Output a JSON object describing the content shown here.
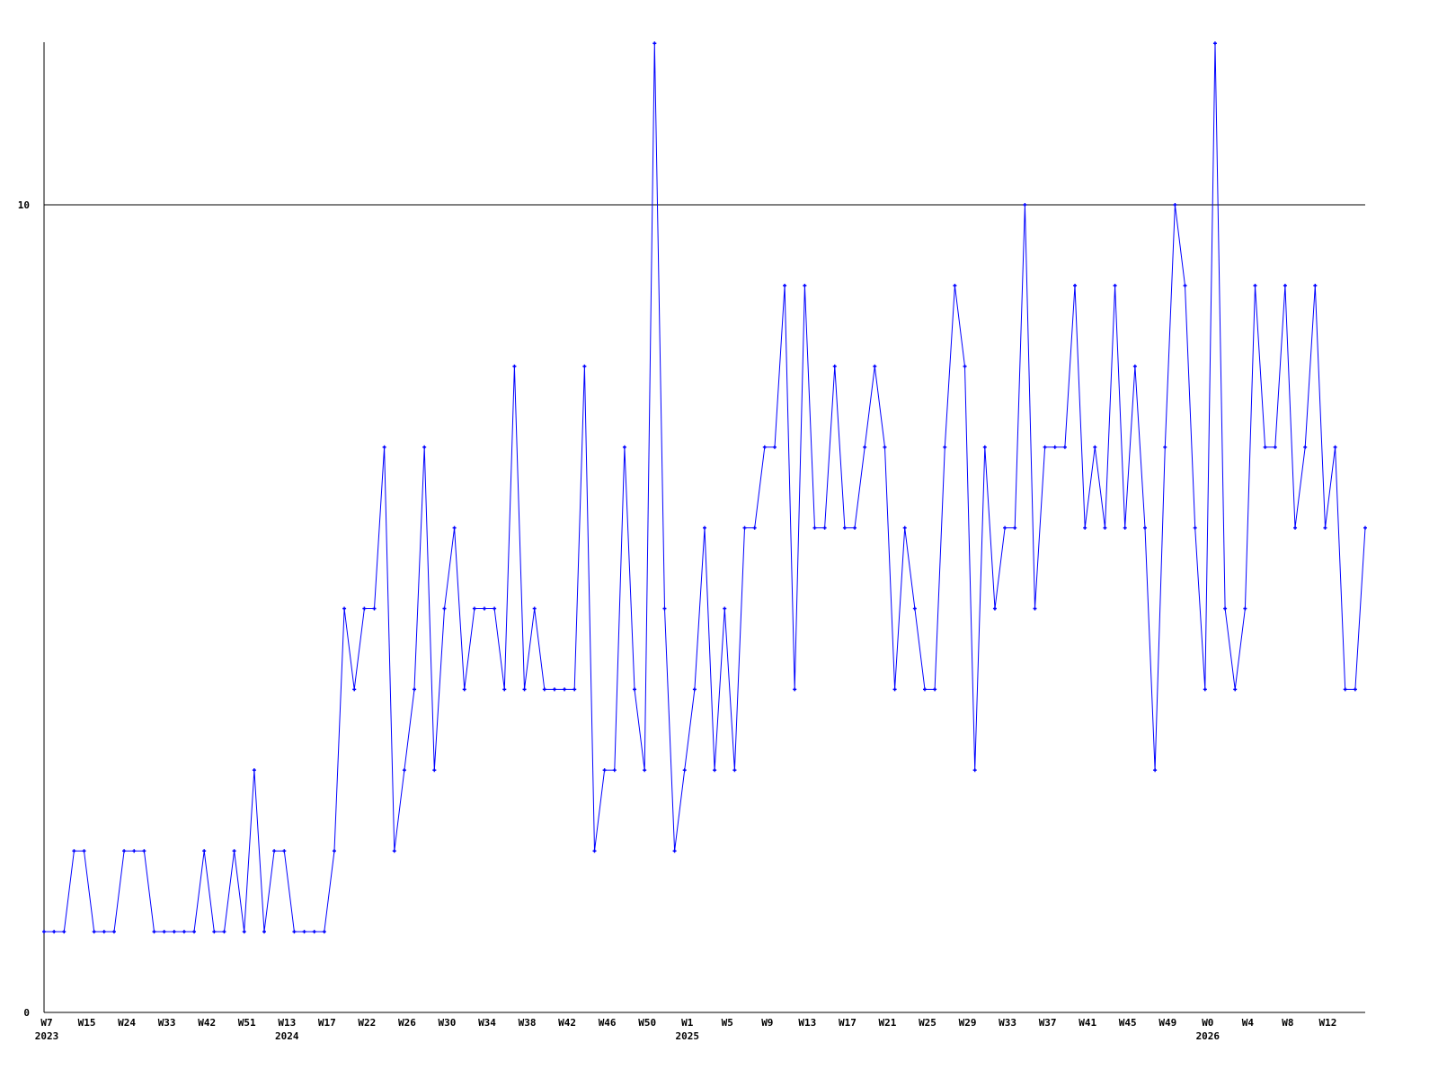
{
  "chart_data": {
    "type": "line",
    "title": "",
    "xlabel": "",
    "ylabel": "",
    "ylim": [
      0,
      12
    ],
    "y_ticks": [
      0,
      10
    ],
    "grid": "horizontal line at 10",
    "line_color": "#0000ff",
    "axis_color": "#000000",
    "series": [
      {
        "values": [
          1,
          1,
          1,
          2,
          2,
          1,
          1,
          1,
          2,
          2,
          2,
          1,
          1,
          1,
          1,
          1,
          2,
          1,
          1,
          2,
          1,
          3,
          1,
          2,
          2,
          1,
          1,
          1,
          1,
          2,
          5,
          4,
          5,
          5,
          7,
          2,
          3,
          4,
          7,
          3,
          5,
          6,
          4,
          5,
          5,
          5,
          4,
          8,
          4,
          5,
          4,
          4,
          4,
          4,
          8,
          2,
          3,
          3,
          7,
          4,
          3,
          12,
          5,
          2,
          3,
          4,
          6,
          3,
          5,
          3,
          6,
          6,
          7,
          7,
          9,
          4,
          9,
          6,
          6,
          8,
          6,
          6,
          7,
          8,
          7,
          4,
          6,
          5,
          4,
          4,
          7,
          9,
          8,
          3,
          7,
          5,
          6,
          6,
          10,
          5,
          7,
          7,
          7,
          9,
          6,
          7,
          6,
          9,
          6,
          8,
          6,
          3,
          7,
          10,
          9,
          6,
          4,
          12,
          5,
          4,
          5,
          9,
          7,
          7,
          9,
          6,
          7,
          9,
          6,
          7,
          4,
          4,
          6
        ]
      }
    ],
    "x_ticks": [
      {
        "label": "W7",
        "point": 0
      },
      {
        "label": "W15",
        "point": 4
      },
      {
        "label": "W24",
        "point": 8
      },
      {
        "label": "W33",
        "point": 12
      },
      {
        "label": "W42",
        "point": 16
      },
      {
        "label": "W51",
        "point": 20
      },
      {
        "label": "W13",
        "point": 24
      },
      {
        "label": "W17",
        "point": 28
      },
      {
        "label": "W22",
        "point": 32
      },
      {
        "label": "W26",
        "point": 36
      },
      {
        "label": "W30",
        "point": 40
      },
      {
        "label": "W34",
        "point": 44
      },
      {
        "label": "W38",
        "point": 48
      },
      {
        "label": "W42",
        "point": 52
      },
      {
        "label": "W46",
        "point": 56
      },
      {
        "label": "W50",
        "point": 60
      },
      {
        "label": "W1",
        "point": 64
      },
      {
        "label": "W5",
        "point": 68
      },
      {
        "label": "W9",
        "point": 72
      },
      {
        "label": "W13",
        "point": 76
      },
      {
        "label": "W17",
        "point": 80
      },
      {
        "label": "W21",
        "point": 84
      },
      {
        "label": "W25",
        "point": 88
      },
      {
        "label": "W29",
        "point": 92
      },
      {
        "label": "W33",
        "point": 96
      },
      {
        "label": "W37",
        "point": 100
      },
      {
        "label": "W41",
        "point": 104
      },
      {
        "label": "W45",
        "point": 108
      },
      {
        "label": "W49",
        "point": 112
      },
      {
        "label": "W0",
        "point": 116
      },
      {
        "label": "W4",
        "point": 120
      },
      {
        "label": "W8",
        "point": 124
      },
      {
        "label": "W12",
        "point": 128
      }
    ],
    "year_labels": [
      {
        "label": "2023",
        "point": 0
      },
      {
        "label": "2024",
        "point": 24
      },
      {
        "label": "2025",
        "point": 64
      },
      {
        "label": "2026",
        "point": 116
      }
    ]
  }
}
